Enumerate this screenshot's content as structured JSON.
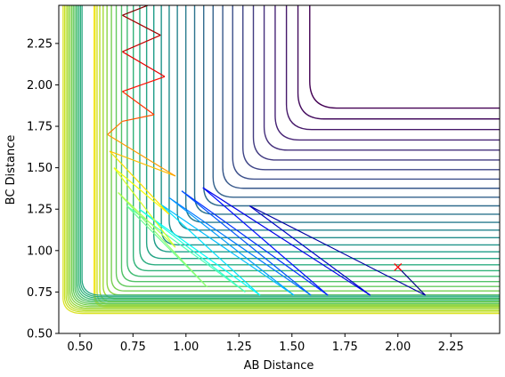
{
  "chart_data": {
    "type": "contour",
    "title": "",
    "xlabel": "AB Distance",
    "ylabel": "BC Distance",
    "xlim": [
      0.4,
      2.48
    ],
    "ylim": [
      0.5,
      2.48
    ],
    "xticks": [
      0.5,
      0.75,
      1.0,
      1.25,
      1.5,
      1.75,
      2.0,
      2.25
    ],
    "xtick_labels": [
      "0.50",
      "0.75",
      "1.00",
      "1.25",
      "1.50",
      "1.75",
      "2.00",
      "2.25"
    ],
    "yticks": [
      0.5,
      0.75,
      1.0,
      1.25,
      1.5,
      1.75,
      2.0,
      2.25
    ],
    "ytick_labels": [
      "0.50",
      "0.75",
      "1.00",
      "1.25",
      "1.50",
      "1.75",
      "2.00",
      "2.25"
    ],
    "grid": false,
    "colormap": "viridis",
    "contour_levels": 30,
    "surface": {
      "type": "LEPS-like potential energy surface",
      "valley_asymptote_bc": 0.74,
      "wall_ab": 0.55,
      "corner_radius": 0.22
    },
    "trajectory": {
      "colormap": "jet",
      "start": {
        "x": 2.0,
        "y": 0.9,
        "marker": "x",
        "color": "#ff0000"
      },
      "path": [
        [
          2.0,
          0.9
        ],
        [
          2.13,
          0.73
        ],
        [
          1.3,
          1.27
        ],
        [
          1.87,
          0.73
        ],
        [
          1.08,
          1.38
        ],
        [
          1.67,
          0.73
        ],
        [
          0.98,
          1.36
        ],
        [
          1.59,
          0.73
        ],
        [
          0.92,
          1.32
        ],
        [
          1.51,
          0.73
        ],
        [
          0.88,
          1.28
        ],
        [
          1.35,
          0.73
        ],
        [
          0.78,
          1.25
        ],
        [
          1.28,
          0.75
        ],
        [
          0.72,
          1.27
        ],
        [
          1.1,
          0.78
        ],
        [
          0.68,
          1.35
        ],
        [
          0.95,
          1.02
        ],
        [
          0.66,
          1.5
        ],
        [
          0.92,
          1.22
        ],
        [
          0.64,
          1.6
        ],
        [
          0.95,
          1.45
        ],
        [
          0.63,
          1.7
        ],
        [
          0.7,
          1.78
        ],
        [
          0.85,
          1.82
        ],
        [
          0.7,
          1.96
        ],
        [
          0.9,
          2.05
        ],
        [
          0.7,
          2.2
        ],
        [
          0.88,
          2.3
        ],
        [
          0.7,
          2.42
        ],
        [
          0.86,
          2.5
        ]
      ]
    }
  }
}
